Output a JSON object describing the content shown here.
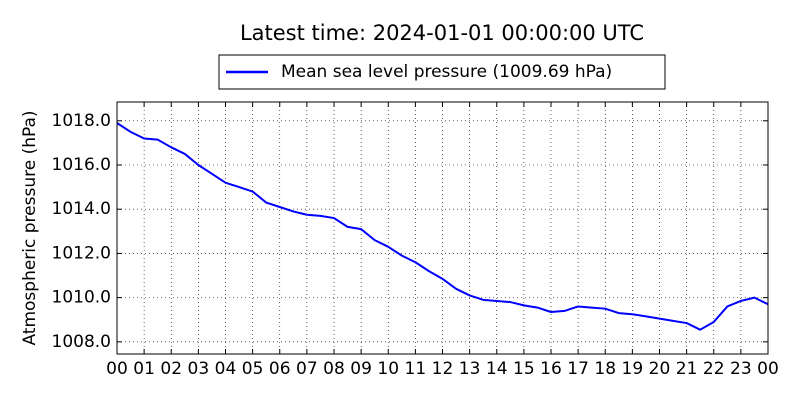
{
  "chart_data": {
    "type": "line",
    "title": "Latest time: 2024-01-01 00:00:00 UTC",
    "y_label": "Atmospheric pressure (hPa)",
    "legend_position": "top",
    "grid": true,
    "x": [
      0,
      0.5,
      1,
      1.5,
      2,
      2.5,
      3,
      3.5,
      4,
      4.5,
      5,
      5.5,
      6,
      6.5,
      7,
      7.5,
      8,
      8.5,
      9,
      9.5,
      10,
      10.5,
      11,
      11.5,
      12,
      12.5,
      13,
      13.5,
      14,
      14.5,
      15,
      15.5,
      16,
      16.5,
      17,
      17.5,
      18,
      18.5,
      19,
      19.5,
      20,
      20.5,
      21,
      21.5,
      22,
      22.5,
      23,
      23.5,
      24
    ],
    "series": [
      {
        "name": "Mean sea level pressure (1009.69 hPa)",
        "color": "#0000ff",
        "values": [
          1017.9,
          1017.5,
          1017.2,
          1017.15,
          1016.8,
          1016.5,
          1016.0,
          1015.6,
          1015.2,
          1015.0,
          1014.8,
          1014.3,
          1014.1,
          1013.9,
          1013.75,
          1013.7,
          1013.6,
          1013.2,
          1013.1,
          1012.6,
          1012.3,
          1011.9,
          1011.6,
          1011.2,
          1010.85,
          1010.4,
          1010.1,
          1009.9,
          1009.85,
          1009.8,
          1009.65,
          1009.55,
          1009.35,
          1009.4,
          1009.6,
          1009.55,
          1009.5,
          1009.3,
          1009.25,
          1009.15,
          1009.05,
          1008.95,
          1008.85,
          1008.55,
          1008.9,
          1009.6,
          1009.85,
          1010.0,
          1009.7
        ]
      }
    ],
    "xlim": [
      0,
      24
    ],
    "xticks": [
      {
        "value": 0,
        "label": "00"
      },
      {
        "value": 1,
        "label": "01"
      },
      {
        "value": 2,
        "label": "02"
      },
      {
        "value": 3,
        "label": "03"
      },
      {
        "value": 4,
        "label": "04"
      },
      {
        "value": 5,
        "label": "05"
      },
      {
        "value": 6,
        "label": "06"
      },
      {
        "value": 7,
        "label": "07"
      },
      {
        "value": 8,
        "label": "08"
      },
      {
        "value": 9,
        "label": "09"
      },
      {
        "value": 10,
        "label": "10"
      },
      {
        "value": 11,
        "label": "11"
      },
      {
        "value": 12,
        "label": "12"
      },
      {
        "value": 13,
        "label": "13"
      },
      {
        "value": 14,
        "label": "14"
      },
      {
        "value": 15,
        "label": "15"
      },
      {
        "value": 16,
        "label": "16"
      },
      {
        "value": 17,
        "label": "17"
      },
      {
        "value": 18,
        "label": "18"
      },
      {
        "value": 19,
        "label": "19"
      },
      {
        "value": 20,
        "label": "20"
      },
      {
        "value": 21,
        "label": "21"
      },
      {
        "value": 22,
        "label": "22"
      },
      {
        "value": 23,
        "label": "23"
      },
      {
        "value": 24,
        "label": "00"
      }
    ],
    "ylim": [
      1007.45,
      1018.85
    ],
    "yticks": [
      {
        "value": 1008,
        "label": "1008.0"
      },
      {
        "value": 1010,
        "label": "1010.0"
      },
      {
        "value": 1012,
        "label": "1012.0"
      },
      {
        "value": 1014,
        "label": "1014.0"
      },
      {
        "value": 1016,
        "label": "1016.0"
      },
      {
        "value": 1018,
        "label": "1018.0"
      }
    ]
  }
}
